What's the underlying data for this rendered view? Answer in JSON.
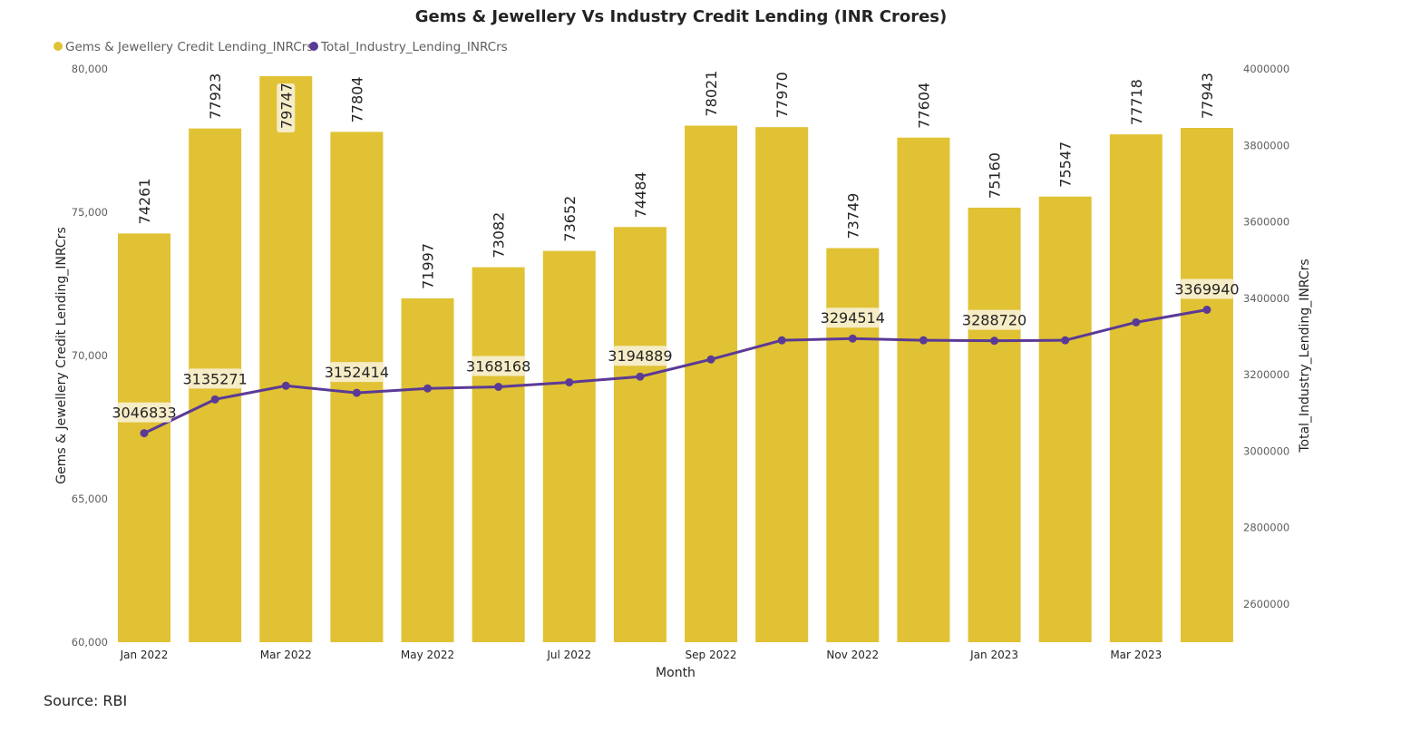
{
  "source_note": "Source: RBI",
  "chart_data": {
    "type": "bar+line",
    "title": "Gems & Jewellery Vs Industry Credit Lending (INR Crores)",
    "xlabel": "Month",
    "ylabel": "Gems & Jewellery Credit Lending_INRCrs",
    "y2label": "Total_Industry_Lending_INRCrs",
    "legend_position": "top-left",
    "ylim": [
      60000,
      80000
    ],
    "y2lim": [
      2500000,
      4000000
    ],
    "yticks": [
      "60,000",
      "65,000",
      "70,000",
      "75,000",
      "80,000"
    ],
    "y2ticks": [
      "2600000",
      "2800000",
      "3000000",
      "3200000",
      "3400000",
      "3600000",
      "3800000",
      "4000000"
    ],
    "categories": [
      "Jan 2022",
      "Feb 2022",
      "Mar 2022",
      "Apr 2022",
      "May 2022",
      "Jun 2022",
      "Jul 2022",
      "Aug 2022",
      "Sep 2022",
      "Oct 2022",
      "Nov 2022",
      "Dec 2022",
      "Jan 2023",
      "Feb 2023",
      "Mar 2023",
      "Apr 2023"
    ],
    "xtick_labels": [
      "Jan 2022",
      "",
      "Mar 2022",
      "",
      "May 2022",
      "",
      "Jul 2022",
      "",
      "Sep 2022",
      "",
      "Nov 2022",
      "",
      "Jan 2023",
      "",
      "Mar 2023",
      ""
    ],
    "series": [
      {
        "name": "Gems & Jewellery Credit Lending_INRCrs",
        "type": "bar",
        "axis": "left",
        "color": "#E0C234",
        "values": [
          74261,
          77923,
          79747,
          77804,
          71997,
          73082,
          73652,
          74484,
          78021,
          77970,
          73749,
          77604,
          75160,
          75547,
          77718,
          77943
        ]
      },
      {
        "name": "Total_Industry_Lending_INRCrs",
        "type": "line",
        "axis": "right",
        "color": "#5B3A96",
        "values": [
          3046833,
          3135271,
          3171000,
          3152414,
          3164000,
          3168168,
          3180000,
          3194889,
          3240000,
          3290000,
          3294514,
          3290000,
          3288720,
          3290000,
          3337000,
          3369940
        ],
        "data_labels": [
          "3046833",
          "3135271",
          "",
          "3152414",
          "",
          "3168168",
          "",
          "3194889",
          "",
          "",
          "3294514",
          "",
          "3288720",
          "",
          "",
          "3369940"
        ]
      }
    ]
  }
}
